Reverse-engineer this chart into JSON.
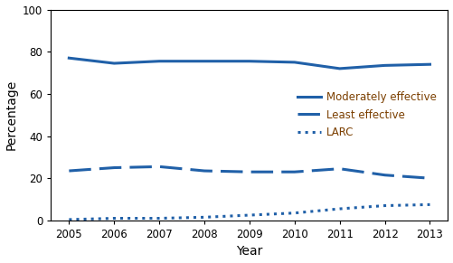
{
  "years": [
    2005,
    2006,
    2007,
    2008,
    2009,
    2010,
    2011,
    2012,
    2013
  ],
  "moderately_effective": [
    77.0,
    74.5,
    75.5,
    75.5,
    75.5,
    75.0,
    72.0,
    73.5,
    74.0
  ],
  "least_effective": [
    23.5,
    25.0,
    25.5,
    23.5,
    23.0,
    23.0,
    24.5,
    21.5,
    20.0
  ],
  "larc": [
    0.4,
    1.0,
    1.0,
    1.5,
    2.5,
    3.5,
    5.5,
    7.0,
    7.5
  ],
  "line_color": "#2060a8",
  "legend_text_color": "#7b3f00",
  "ylim": [
    0,
    100
  ],
  "yticks": [
    0,
    20,
    40,
    60,
    80,
    100
  ],
  "xlim": [
    2004.6,
    2013.4
  ],
  "xlabel": "Year",
  "ylabel": "Percentage",
  "legend_labels": [
    "Moderately effective",
    "Least effective",
    "LARC"
  ],
  "background_color": "#ffffff",
  "tick_fontsize": 8.5,
  "axis_label_fontsize": 10,
  "legend_fontsize": 8.5
}
